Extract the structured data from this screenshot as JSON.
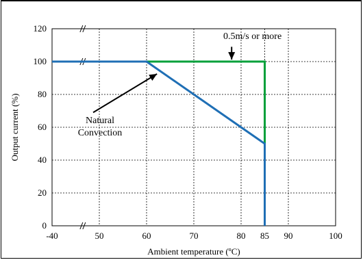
{
  "chart_data": {
    "type": "line",
    "title": "",
    "xlabel": "Ambient temperature (ºC)",
    "ylabel": "Output current (%)",
    "xlim": [
      40,
      100
    ],
    "ylim": [
      0,
      120
    ],
    "x_axis_break": true,
    "x_ticks": [
      {
        "value": 40,
        "label": "-40"
      },
      {
        "value": 50,
        "label": "50"
      },
      {
        "value": 60,
        "label": "60"
      },
      {
        "value": 70,
        "label": "70"
      },
      {
        "value": 80,
        "label": "80"
      },
      {
        "value": 85,
        "label": "85"
      },
      {
        "value": 90,
        "label": "90"
      },
      {
        "value": 100,
        "label": "100"
      }
    ],
    "y_ticks": [
      0,
      20,
      40,
      60,
      80,
      100,
      120
    ],
    "grid": true,
    "series": [
      {
        "color": "#00a03a",
        "points": [
          [
            40,
            100
          ],
          [
            85,
            100
          ],
          [
            85,
            0
          ]
        ]
      },
      {
        "color": "#1f6fb5",
        "points": [
          [
            40,
            100
          ],
          [
            60,
            100
          ],
          [
            85,
            50
          ],
          [
            85,
            0
          ]
        ]
      }
    ],
    "annotations": [
      {
        "text": "0.5m/s or more",
        "x": 78,
        "y": 110
      },
      {
        "text": "Natural",
        "x": 49,
        "y": 65
      },
      {
        "text": "Convection",
        "x": 49,
        "y": 58
      }
    ]
  }
}
